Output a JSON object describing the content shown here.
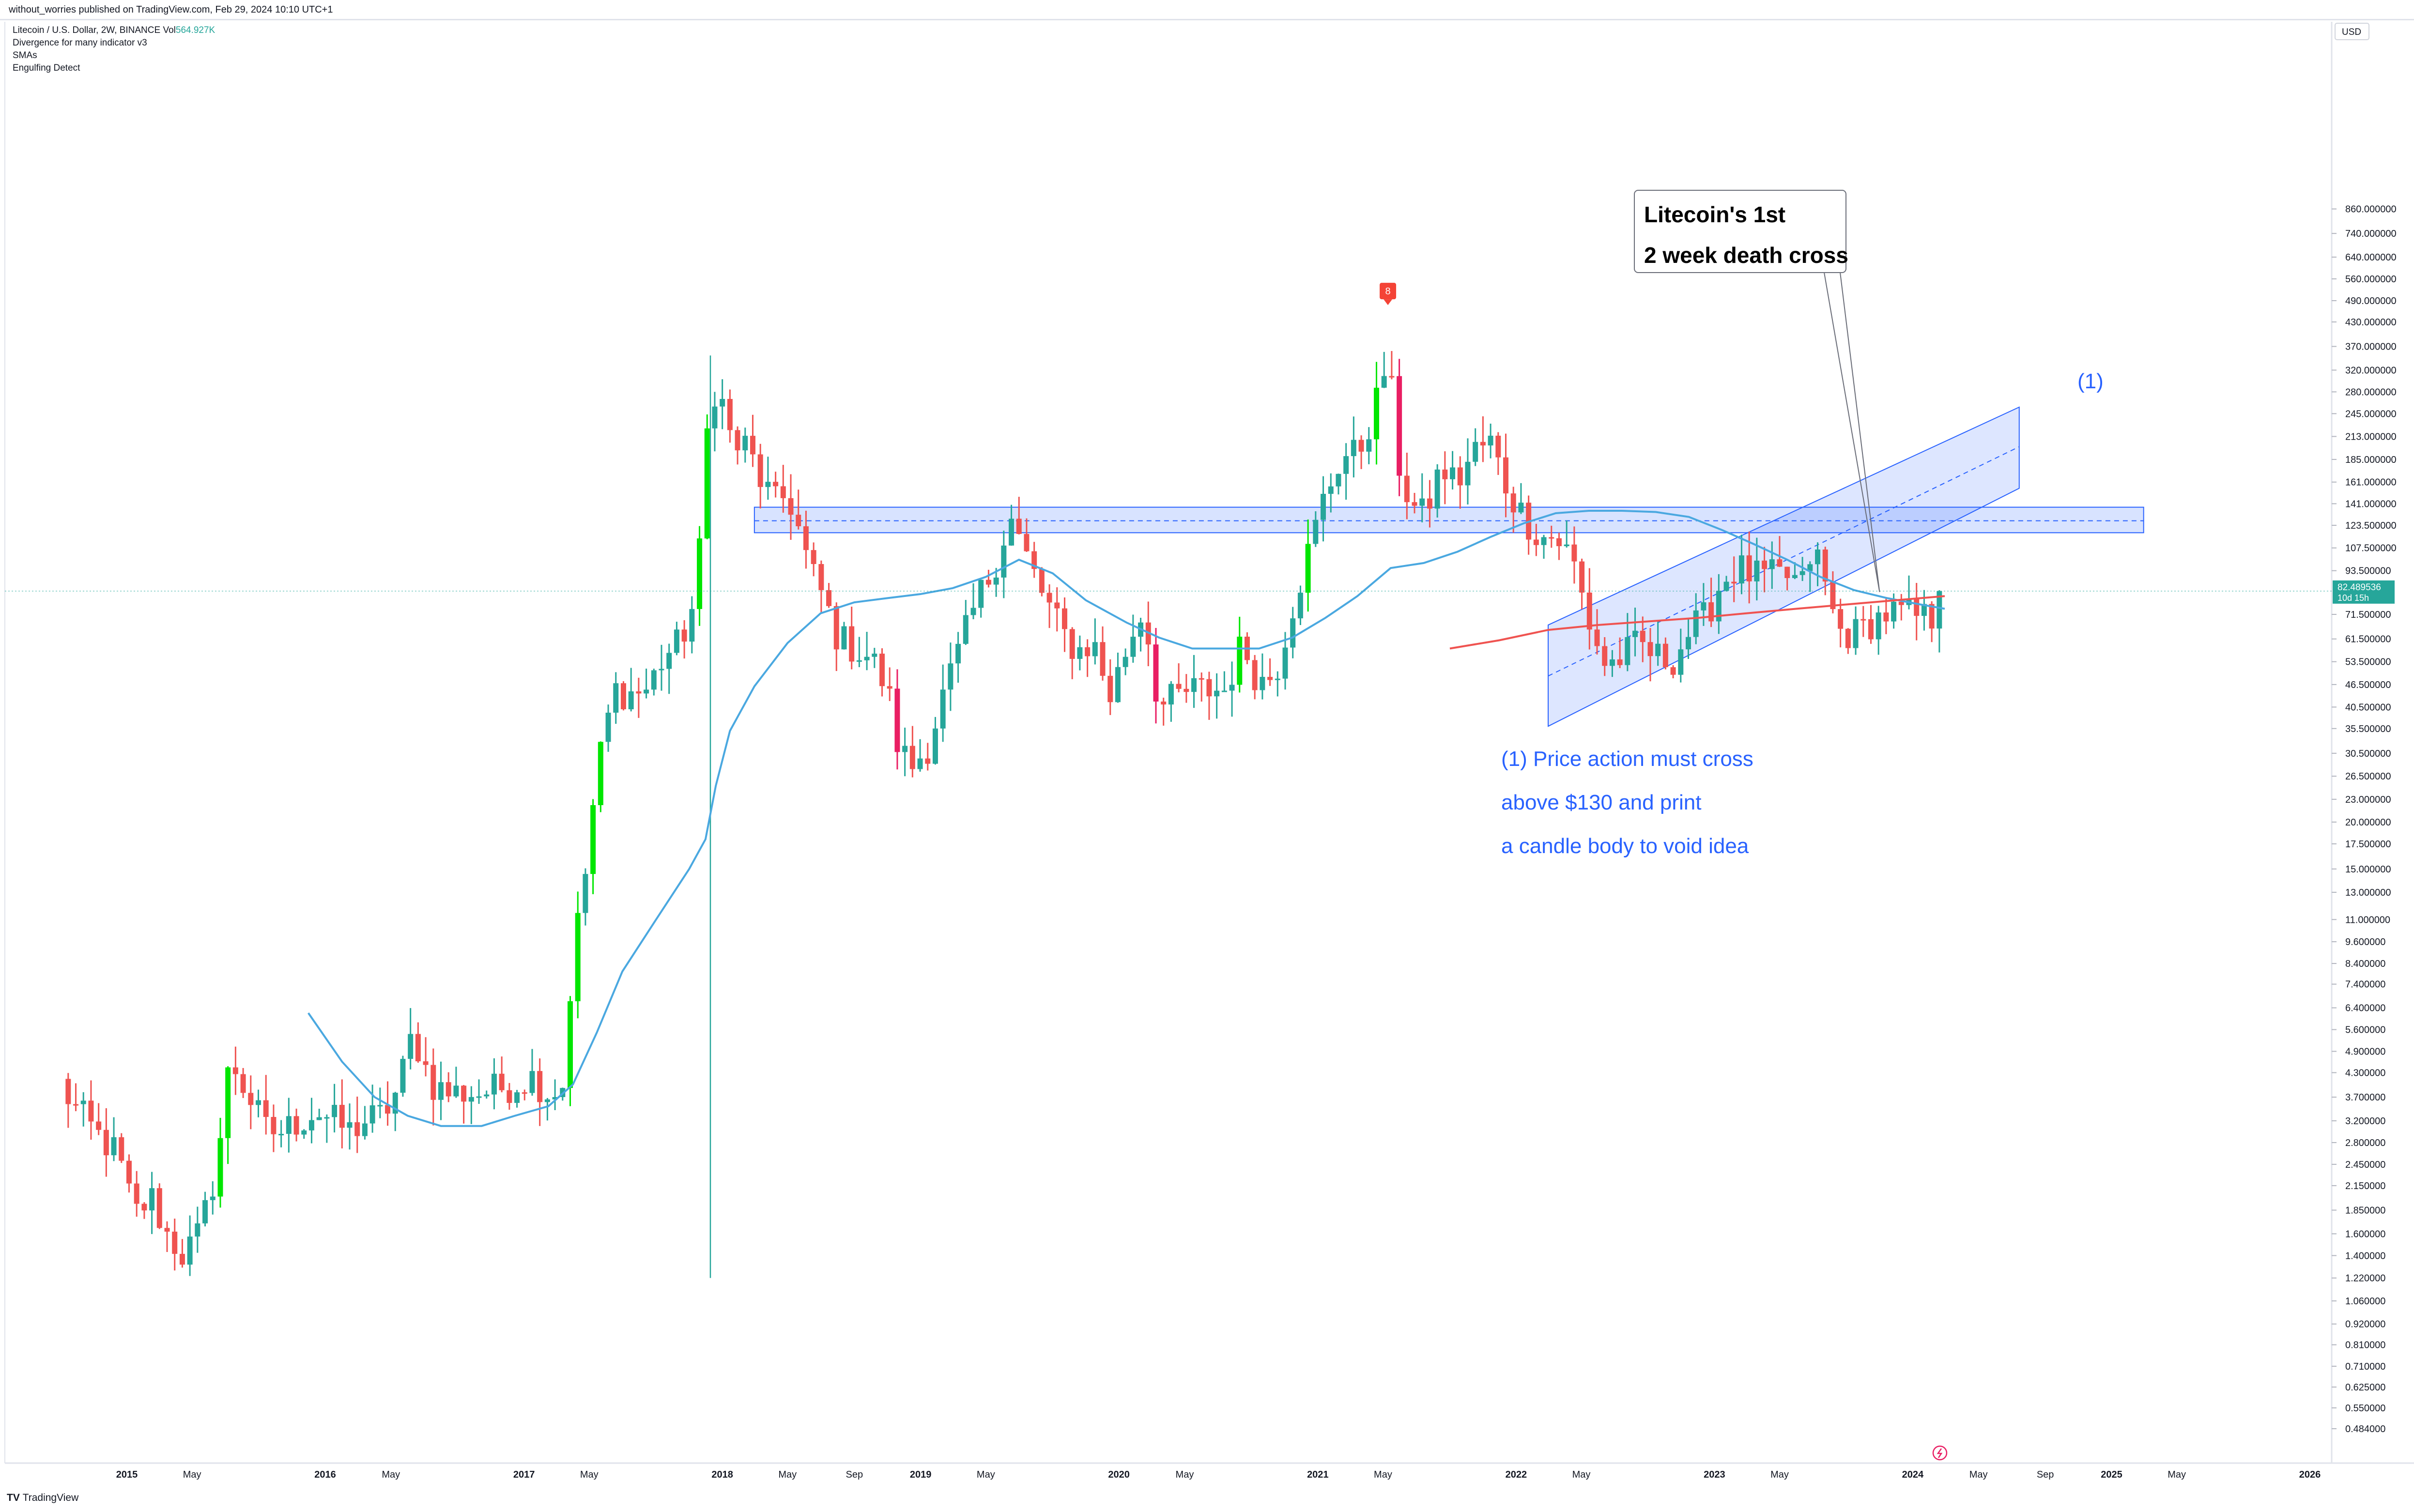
{
  "header": {
    "publisher": "without_worries published on TradingView.com, Feb 29, 2024 10:10 UTC+1"
  },
  "legend": {
    "symbol_line": "Litecoin / U.S. Dollar, 2W, BINANCE",
    "vol_label": "Vol",
    "vol_value": "564.927K",
    "indicators": [
      "Divergence for many indicator v3",
      "SMAs",
      "Engulfing Detect"
    ]
  },
  "footer": {
    "logo_mark": "TV",
    "logo_text": "TradingView"
  },
  "colors": {
    "up": "#26a69a",
    "down": "#ef5350",
    "engulf_up": "#00e600",
    "engulf_down": "#e91e63",
    "sma_blue": "#4aa8e0",
    "sma_red": "#ef5350",
    "channel": "#2962ff",
    "accent_text": "#2962ff"
  },
  "chart_data": {
    "type": "candlestick",
    "timeframe": "2W",
    "y_scale": "log",
    "y_currency": "USD",
    "y_tick_labels": [
      "860.000000",
      "740.000000",
      "640.000000",
      "560.000000",
      "490.000000",
      "430.000000",
      "370.000000",
      "320.000000",
      "280.000000",
      "245.000000",
      "213.000000",
      "185.000000",
      "161.000000",
      "141.000000",
      "123.500000",
      "107.500000",
      "93.500000",
      "71.500000",
      "61.500000",
      "53.500000",
      "46.500000",
      "40.500000",
      "35.500000",
      "30.500000",
      "26.500000",
      "23.000000",
      "20.000000",
      "17.500000",
      "15.000000",
      "13.000000",
      "11.000000",
      "9.600000",
      "8.400000",
      "7.400000",
      "6.400000",
      "5.600000",
      "4.900000",
      "4.300000",
      "3.700000",
      "3.200000",
      "2.800000",
      "2.450000",
      "2.150000",
      "1.850000",
      "1.600000",
      "1.400000",
      "1.220000",
      "1.060000",
      "0.920000",
      "0.810000",
      "0.710000",
      "0.625000",
      "0.550000",
      "0.484000"
    ],
    "x_tick_labels": [
      "2015",
      "May",
      "2016",
      "May",
      "2017",
      "May",
      "2018",
      "May",
      "Sep",
      "2019",
      "May",
      "2020",
      "May",
      "2021",
      "May",
      "2022",
      "May",
      "2023",
      "May",
      "2024",
      "May",
      "Sep",
      "2025",
      "May",
      "2026"
    ],
    "last_price": "82.489536",
    "countdown": "10d 15h",
    "price_path": [
      [
        "2014-09-01",
        4.0
      ],
      [
        "2014-09-25",
        3.5
      ],
      [
        "2014-11-01",
        3.0
      ],
      [
        "2014-12-15",
        2.6
      ],
      [
        "2015-01-15",
        1.8
      ],
      [
        "2015-02-15",
        2.0
      ],
      [
        "2015-03-15",
        1.6
      ],
      [
        "2015-04-15",
        1.4
      ],
      [
        "2015-05-15",
        1.6
      ],
      [
        "2015-06-15",
        2.4
      ],
      [
        "2015-07-10",
        4.7
      ],
      [
        "2015-08-10",
        3.8
      ],
      [
        "2015-09-15",
        3.0
      ],
      [
        "2015-10-15",
        3.0
      ],
      [
        "2015-11-15",
        3.2
      ],
      [
        "2015-12-15",
        3.4
      ],
      [
        "2016-01-15",
        3.2
      ],
      [
        "2016-02-15",
        3.0
      ],
      [
        "2016-03-15",
        3.2
      ],
      [
        "2016-04-15",
        3.3
      ],
      [
        "2016-05-15",
        3.9
      ],
      [
        "2016-06-10",
        5.5
      ],
      [
        "2016-07-15",
        4.0
      ],
      [
        "2016-08-15",
        3.8
      ],
      [
        "2016-09-15",
        3.8
      ],
      [
        "2016-10-15",
        3.8
      ],
      [
        "2016-11-15",
        3.9
      ],
      [
        "2016-12-15",
        4.0
      ],
      [
        "2017-01-15",
        4.2
      ],
      [
        "2017-02-15",
        3.8
      ],
      [
        "2017-03-15",
        4.0
      ],
      [
        "2017-04-01",
        9.0
      ],
      [
        "2017-04-20",
        13.0
      ],
      [
        "2017-05-15",
        27.0
      ],
      [
        "2017-06-15",
        45.0
      ],
      [
        "2017-07-15",
        44.0
      ],
      [
        "2017-08-15",
        45.0
      ],
      [
        "2017-09-15",
        55.0
      ],
      [
        "2017-10-15",
        60.0
      ],
      [
        "2017-11-15",
        80.0
      ],
      [
        "2017-12-10",
        300.0
      ],
      [
        "2018-01-01",
        260.0
      ],
      [
        "2018-01-20",
        200.0
      ],
      [
        "2018-02-15",
        200.0
      ],
      [
        "2018-03-15",
        160.0
      ],
      [
        "2018-04-10",
        140.0
      ],
      [
        "2018-05-01",
        150.0
      ],
      [
        "2018-05-15",
        130.0
      ],
      [
        "2018-06-10",
        95.0
      ],
      [
        "2018-07-05",
        80.0
      ],
      [
        "2018-08-01",
        62.0
      ],
      [
        "2018-09-01",
        58.0
      ],
      [
        "2018-10-01",
        55.0
      ],
      [
        "2018-11-01",
        45.0
      ],
      [
        "2018-11-20",
        32.0
      ],
      [
        "2018-12-15",
        28.0
      ],
      [
        "2019-01-15",
        32.0
      ],
      [
        "2019-02-15",
        45.0
      ],
      [
        "2019-03-15",
        58.0
      ],
      [
        "2019-04-15",
        78.0
      ],
      [
        "2019-05-15",
        95.0
      ],
      [
        "2019-06-15",
        130.0
      ],
      [
        "2019-07-10",
        105.0
      ],
      [
        "2019-08-15",
        80.0
      ],
      [
        "2019-09-15",
        65.0
      ],
      [
        "2019-10-15",
        57.0
      ],
      [
        "2019-11-15",
        60.0
      ],
      [
        "2019-12-15",
        43.0
      ],
      [
        "2020-01-15",
        58.0
      ],
      [
        "2020-02-15",
        75.0
      ],
      [
        "2020-03-15",
        40.0
      ],
      [
        "2020-04-15",
        43.0
      ],
      [
        "2020-05-15",
        45.0
      ],
      [
        "2020-06-15",
        45.0
      ],
      [
        "2020-07-15",
        45.0
      ],
      [
        "2020-08-15",
        60.0
      ],
      [
        "2020-09-15",
        47.0
      ],
      [
        "2020-10-15",
        50.0
      ],
      [
        "2020-11-15",
        75.0
      ],
      [
        "2020-12-15",
        105.0
      ],
      [
        "2021-01-15",
        150.0
      ],
      [
        "2021-02-15",
        190.0
      ],
      [
        "2021-03-15",
        190.0
      ],
      [
        "2021-04-15",
        250.0
      ],
      [
        "2021-05-10",
        350.0
      ],
      [
        "2021-05-30",
        180.0
      ],
      [
        "2021-06-20",
        140.0
      ],
      [
        "2021-07-15",
        130.0
      ],
      [
        "2021-08-15",
        175.0
      ],
      [
        "2021-09-15",
        160.0
      ],
      [
        "2021-10-15",
        195.0
      ],
      [
        "2021-11-15",
        205.0
      ],
      [
        "2021-12-15",
        155.0
      ],
      [
        "2022-01-15",
        130.0
      ],
      [
        "2022-02-15",
        115.0
      ],
      [
        "2022-03-15",
        115.0
      ],
      [
        "2022-04-15",
        100.0
      ],
      [
        "2022-05-15",
        68.0
      ],
      [
        "2022-06-15",
        52.0
      ],
      [
        "2022-07-15",
        55.0
      ],
      [
        "2022-08-15",
        60.0
      ],
      [
        "2022-09-15",
        55.0
      ],
      [
        "2022-10-15",
        54.0
      ],
      [
        "2022-11-15",
        64.0
      ],
      [
        "2022-12-15",
        70.0
      ],
      [
        "2023-01-15",
        88.0
      ],
      [
        "2023-02-15",
        95.0
      ],
      [
        "2023-03-15",
        90.0
      ],
      [
        "2023-04-15",
        90.0
      ],
      [
        "2023-05-15",
        90.0
      ],
      [
        "2023-06-15",
        85.0
      ],
      [
        "2023-07-01",
        110.0
      ],
      [
        "2023-07-20",
        90.0
      ],
      [
        "2023-08-15",
        65.0
      ],
      [
        "2023-09-15",
        63.0
      ],
      [
        "2023-10-15",
        68.0
      ],
      [
        "2023-11-15",
        72.0
      ],
      [
        "2023-12-15",
        72.0
      ],
      [
        "2024-01-15",
        70.0
      ],
      [
        "2024-02-10",
        70.0
      ],
      [
        "2024-02-29",
        82.5
      ]
    ],
    "sma_50": [
      [
        "2015-12-01",
        6.2
      ],
      [
        "2016-02-01",
        4.6
      ],
      [
        "2016-04-01",
        3.7
      ],
      [
        "2016-06-01",
        3.3
      ],
      [
        "2016-08-01",
        3.1
      ],
      [
        "2016-10-15",
        3.1
      ],
      [
        "2016-12-15",
        3.3
      ],
      [
        "2017-02-15",
        3.5
      ],
      [
        "2017-04-01",
        4.0
      ],
      [
        "2017-05-15",
        5.5
      ],
      [
        "2017-07-01",
        8.0
      ],
      [
        "2017-09-01",
        11.0
      ],
      [
        "2017-11-01",
        15.0
      ],
      [
        "2017-12-01",
        18.0
      ],
      [
        "2017-12-20",
        25.0
      ],
      [
        "2018-01-15",
        35.0
      ],
      [
        "2018-03-01",
        46.0
      ],
      [
        "2018-05-01",
        60.0
      ],
      [
        "2018-07-01",
        72.0
      ],
      [
        "2018-09-01",
        77.0
      ],
      [
        "2018-11-01",
        79.0
      ],
      [
        "2019-01-01",
        81.0
      ],
      [
        "2019-03-01",
        84.0
      ],
      [
        "2019-05-01",
        90.0
      ],
      [
        "2019-07-01",
        100.0
      ],
      [
        "2019-09-01",
        92.0
      ],
      [
        "2019-11-01",
        78.0
      ],
      [
        "2020-01-15",
        68.0
      ],
      [
        "2020-03-15",
        62.0
      ],
      [
        "2020-05-15",
        58.0
      ],
      [
        "2020-07-15",
        58.0
      ],
      [
        "2020-09-15",
        58.0
      ],
      [
        "2020-11-15",
        62.0
      ],
      [
        "2021-01-15",
        70.0
      ],
      [
        "2021-03-15",
        80.0
      ],
      [
        "2021-05-15",
        95.0
      ],
      [
        "2021-07-15",
        98.0
      ],
      [
        "2021-09-15",
        105.0
      ],
      [
        "2021-11-15",
        115.0
      ],
      [
        "2022-01-15",
        125.0
      ],
      [
        "2022-03-15",
        133.0
      ],
      [
        "2022-05-15",
        135.0
      ],
      [
        "2022-07-15",
        135.0
      ],
      [
        "2022-09-15",
        134.0
      ],
      [
        "2022-11-15",
        130.0
      ],
      [
        "2023-01-15",
        120.0
      ],
      [
        "2023-03-15",
        110.0
      ],
      [
        "2023-05-15",
        100.0
      ],
      [
        "2023-07-15",
        90.0
      ],
      [
        "2023-09-15",
        83.0
      ],
      [
        "2023-11-15",
        79.0
      ],
      [
        "2024-01-15",
        76.0
      ],
      [
        "2024-02-29",
        74.0
      ]
    ],
    "sma_200": [
      [
        "2021-09-01",
        58.0
      ],
      [
        "2021-12-01",
        61.0
      ],
      [
        "2022-03-01",
        65.0
      ],
      [
        "2022-06-01",
        67.0
      ],
      [
        "2022-09-01",
        68.5
      ],
      [
        "2022-12-01",
        70.0
      ],
      [
        "2023-03-01",
        72.0
      ],
      [
        "2023-06-01",
        74.0
      ],
      [
        "2023-09-01",
        76.0
      ],
      [
        "2023-12-01",
        78.0
      ],
      [
        "2024-02-29",
        80.0
      ]
    ],
    "resistance_zone": {
      "from": "2018-03-01",
      "to": "2025-03-01",
      "low": 118,
      "high": 138,
      "mid": 127
    },
    "channel": {
      "lower": [
        [
          "2022-03-01",
          36.0
        ],
        [
          "2024-07-15",
          155.0
        ]
      ],
      "upper": [
        [
          "2022-03-01",
          67.0
        ],
        [
          "2024-07-15",
          255.0
        ]
      ],
      "mid": [
        [
          "2022-03-01",
          49.0
        ],
        [
          "2024-07-15",
          200.0
        ]
      ]
    },
    "signal_marker": {
      "date": "2021-05-10",
      "price": 500,
      "text": "8"
    },
    "callout": {
      "lines": [
        "Litecoin's 1st",
        "2 week death cross"
      ],
      "pointer_date": "2023-11-01",
      "pointer_price": 82
    },
    "label_1": "(1)",
    "note_lines": [
      "(1)  Price action must cross",
      "above $130 and print",
      "a candle body to void idea"
    ]
  }
}
